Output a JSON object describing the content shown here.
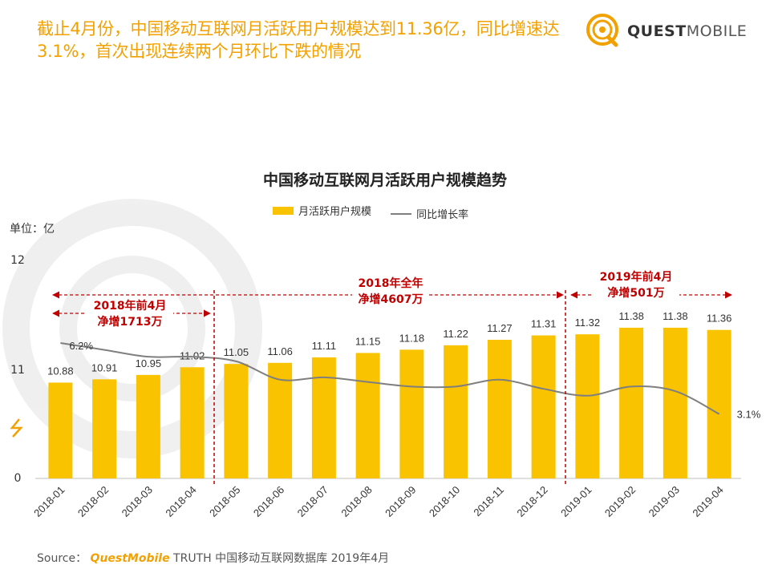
{
  "headline": "截止4月份，中国移动互联网月活跃用户规模达到11.36亿，同比增速达3.1%，首次出现连续两个月环比下跌的情况",
  "brand": {
    "name_bold": "QUEST",
    "name_light": "MOBILE"
  },
  "unit_label": "单位：亿",
  "source": {
    "prefix": "Source：",
    "brand": "QuestMobile",
    "rest": " TRUTH 中国移动互联网数据库 2019年4月"
  },
  "colors": {
    "bar": "#f9c300",
    "line": "#7f7f7f",
    "accent": "#f2a100",
    "annotation": "#c00000"
  },
  "chart_data": {
    "type": "bar",
    "title": "中国移动互联网月活跃用户规模趋势",
    "categories": [
      "2018-01",
      "2018-02",
      "2018-03",
      "2018-04",
      "2018-05",
      "2018-06",
      "2018-07",
      "2018-08",
      "2018-09",
      "2018-10",
      "2018-11",
      "2018-12",
      "2019-01",
      "2019-02",
      "2019-03",
      "2019-04"
    ],
    "series": [
      {
        "name": "月活跃用户规模",
        "type": "bar",
        "values": [
          10.88,
          10.91,
          10.95,
          11.02,
          11.05,
          11.06,
          11.11,
          11.15,
          11.18,
          11.22,
          11.27,
          11.31,
          11.32,
          11.38,
          11.38,
          11.36
        ],
        "labels": [
          "10.88",
          "10.91",
          "10.95",
          "11.02",
          "11.05",
          "11.06",
          "11.11",
          "11.15",
          "11.18",
          "11.22",
          "11.27",
          "11.31",
          "11.32",
          "11.38",
          "11.38",
          "11.36"
        ]
      },
      {
        "name": "同比增长率",
        "type": "line",
        "axis": "secondary",
        "values": [
          6.2,
          5.9,
          5.6,
          5.6,
          5.4,
          4.6,
          4.7,
          4.5,
          4.3,
          4.3,
          4.6,
          4.2,
          3.9,
          4.3,
          4.1,
          3.1
        ],
        "point_labels": {
          "0": "6.2%",
          "15": "3.1%"
        }
      }
    ],
    "y_ticks": [
      "0",
      "11",
      "12"
    ],
    "annotations": [
      {
        "label": "2018年前4月",
        "sub": "净增1713万",
        "from": "2018-01",
        "to": "2018-04"
      },
      {
        "label": "2018年全年",
        "sub": "净增4607万",
        "from": "2018-01",
        "to": "2018-12"
      },
      {
        "label": "2019年前4月",
        "sub": "净增501万",
        "from": "2019-01",
        "to": "2019-04"
      }
    ]
  }
}
